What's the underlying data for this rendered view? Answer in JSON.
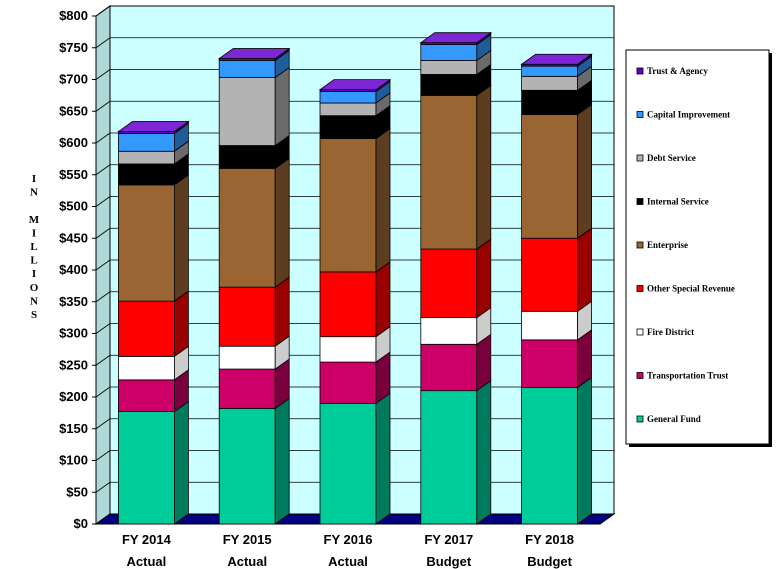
{
  "chart_data": {
    "type": "bar",
    "stacked": true,
    "three_d": true,
    "categories": [
      [
        "FY 2014",
        "Actual"
      ],
      [
        "FY 2015",
        "Actual"
      ],
      [
        "FY 2016",
        "Actual"
      ],
      [
        "FY 2017",
        "Budget"
      ],
      [
        "FY 2018",
        "Budget"
      ]
    ],
    "ylabel": "IN MILLIONS",
    "ylim": [
      0,
      800
    ],
    "ytick_step": 50,
    "ytick_prefix": "$",
    "grid": true,
    "legend_position": "right",
    "plot_background": "#ccffff",
    "floor_color": "#000080",
    "series": [
      {
        "name": "General Fund",
        "color": "#00cc99",
        "values": [
          177,
          182,
          190,
          210,
          215
        ]
      },
      {
        "name": "Transportation Trust",
        "color": "#cc0066",
        "values": [
          50,
          62,
          65,
          73,
          75
        ]
      },
      {
        "name": "Fire District",
        "color": "#ffffff",
        "values": [
          37,
          36,
          40,
          42,
          45
        ]
      },
      {
        "name": "Other Special Revenue",
        "color": "#ff0000",
        "values": [
          87,
          93,
          102,
          108,
          115
        ]
      },
      {
        "name": "Enterprise",
        "color": "#996633",
        "values": [
          183,
          187,
          210,
          242,
          195
        ]
      },
      {
        "name": "Internal Service",
        "color": "#000000",
        "values": [
          33,
          36,
          36,
          33,
          38
        ]
      },
      {
        "name": "Debt Service",
        "color": "#b3b3b3",
        "values": [
          20,
          107,
          20,
          22,
          22
        ]
      },
      {
        "name": "Capital Improvement",
        "color": "#3399ff",
        "values": [
          28,
          27,
          18,
          25,
          16
        ]
      },
      {
        "name": "Trust & Agency",
        "color": "#6600cc",
        "values": [
          3,
          3,
          3,
          3,
          3
        ]
      }
    ]
  }
}
